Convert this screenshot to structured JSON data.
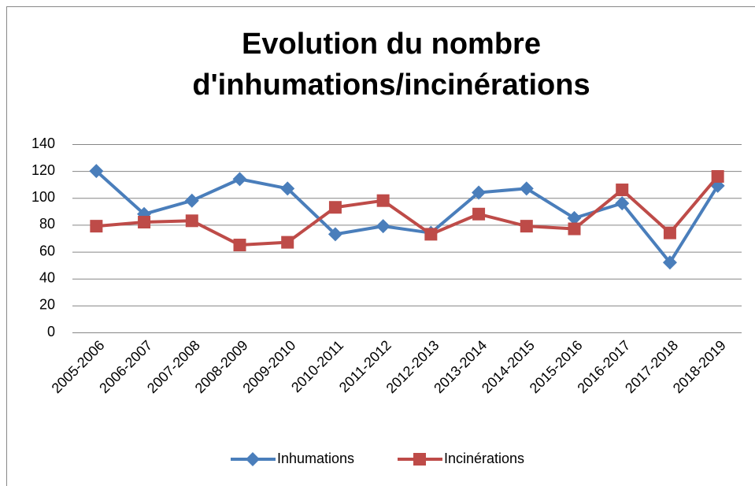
{
  "chart_data": {
    "type": "line",
    "title": "Evolution du nombre d'inhumations/incinérations",
    "categories": [
      "2005-2006",
      "2006-2007",
      "2007-2008",
      "2008-2009",
      "2009-2010",
      "2010-2011",
      "2011-2012",
      "2012-2013",
      "2013-2014",
      "2014-2015",
      "2015-2016",
      "2016-2017",
      "2017-2018",
      "2018-2019"
    ],
    "series": [
      {
        "name": "Inhumations",
        "color": "#4a7ebb",
        "marker": "diamond",
        "values": [
          120,
          88,
          98,
          114,
          107,
          73,
          79,
          74,
          104,
          107,
          85,
          96,
          52,
          109
        ]
      },
      {
        "name": "Incinérations",
        "color": "#be4b48",
        "marker": "square",
        "values": [
          79,
          82,
          83,
          65,
          67,
          93,
          98,
          73,
          88,
          79,
          77,
          106,
          74,
          116
        ]
      }
    ],
    "ylim": [
      0,
      140
    ],
    "yticks": [
      0,
      20,
      40,
      60,
      80,
      100,
      120,
      140
    ],
    "grid": true,
    "legend": "bottom"
  }
}
